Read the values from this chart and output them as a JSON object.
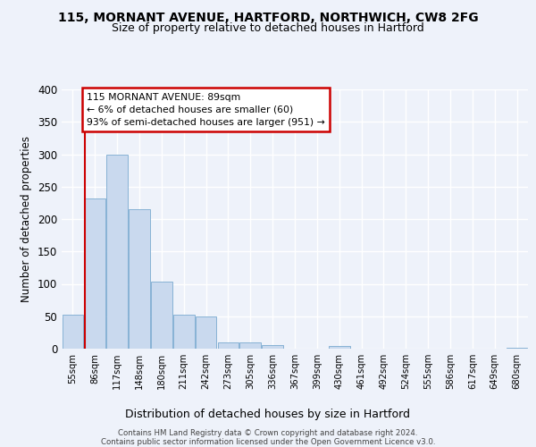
{
  "title1": "115, MORNANT AVENUE, HARTFORD, NORTHWICH, CW8 2FG",
  "title2": "Size of property relative to detached houses in Hartford",
  "xlabel": "Distribution of detached houses by size in Hartford",
  "ylabel": "Number of detached properties",
  "bin_labels": [
    "55sqm",
    "86sqm",
    "117sqm",
    "148sqm",
    "180sqm",
    "211sqm",
    "242sqm",
    "273sqm",
    "305sqm",
    "336sqm",
    "367sqm",
    "399sqm",
    "430sqm",
    "461sqm",
    "492sqm",
    "524sqm",
    "555sqm",
    "586sqm",
    "617sqm",
    "649sqm",
    "680sqm"
  ],
  "bar_values": [
    52,
    232,
    300,
    215,
    103,
    53,
    50,
    9,
    9,
    6,
    0,
    0,
    4,
    0,
    0,
    0,
    0,
    0,
    0,
    0,
    2
  ],
  "bar_color": "#c9d9ee",
  "bar_edge_color": "#7aaad0",
  "vline_color": "#cc0000",
  "annotation_title": "115 MORNANT AVENUE: 89sqm",
  "annotation_line1": "← 6% of detached houses are smaller (60)",
  "annotation_line2": "93% of semi-detached houses are larger (951) →",
  "annotation_box_color": "#cc0000",
  "footer1": "Contains HM Land Registry data © Crown copyright and database right 2024.",
  "footer2": "Contains public sector information licensed under the Open Government Licence v3.0.",
  "bg_color": "#eef2fa",
  "ylim": [
    0,
    400
  ],
  "yticks": [
    0,
    50,
    100,
    150,
    200,
    250,
    300,
    350,
    400
  ]
}
